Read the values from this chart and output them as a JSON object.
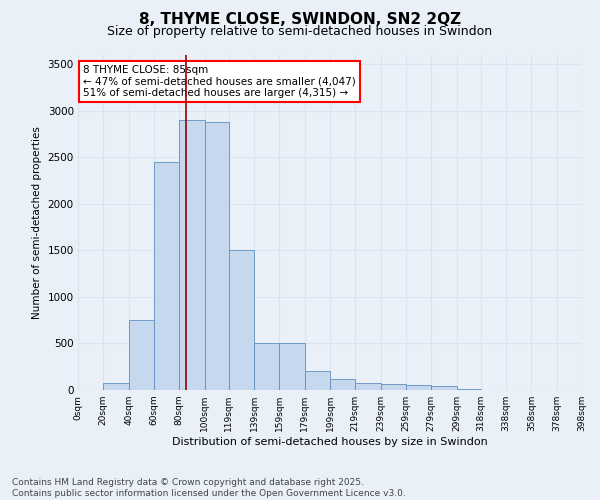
{
  "title": "8, THYME CLOSE, SWINDON, SN2 2QZ",
  "subtitle": "Size of property relative to semi-detached houses in Swindon",
  "xlabel": "Distribution of semi-detached houses by size in Swindon",
  "ylabel": "Number of semi-detached properties",
  "bar_color": "#c5d8ee",
  "bar_edge_color": "#6090c0",
  "background_color": "#eaf0f8",
  "grid_color": "#d8e4f0",
  "annotation_text": "8 THYME CLOSE: 85sqm\n← 47% of semi-detached houses are smaller (4,047)\n51% of semi-detached houses are larger (4,315) →",
  "property_size": 85,
  "vline_color": "#990000",
  "categories": [
    "0sqm",
    "20sqm",
    "40sqm",
    "60sqm",
    "80sqm",
    "100sqm",
    "119sqm",
    "139sqm",
    "159sqm",
    "179sqm",
    "199sqm",
    "219sqm",
    "239sqm",
    "259sqm",
    "279sqm",
    "299sqm",
    "318sqm",
    "338sqm",
    "358sqm",
    "378sqm",
    "398sqm"
  ],
  "bin_edges": [
    0,
    20,
    40,
    60,
    80,
    100,
    119,
    139,
    159,
    179,
    199,
    219,
    239,
    259,
    279,
    299,
    318,
    338,
    358,
    378,
    398
  ],
  "bar_heights": [
    5,
    80,
    750,
    2450,
    2900,
    2880,
    1500,
    510,
    510,
    200,
    120,
    80,
    65,
    50,
    40,
    15,
    5,
    3,
    1,
    1
  ],
  "ylim": [
    0,
    3600
  ],
  "yticks": [
    0,
    500,
    1000,
    1500,
    2000,
    2500,
    3000,
    3500
  ],
  "footer": "Contains HM Land Registry data © Crown copyright and database right 2025.\nContains public sector information licensed under the Open Government Licence v3.0.",
  "title_fontsize": 11,
  "subtitle_fontsize": 9,
  "annotation_fontsize": 7.5,
  "footer_fontsize": 6.5
}
